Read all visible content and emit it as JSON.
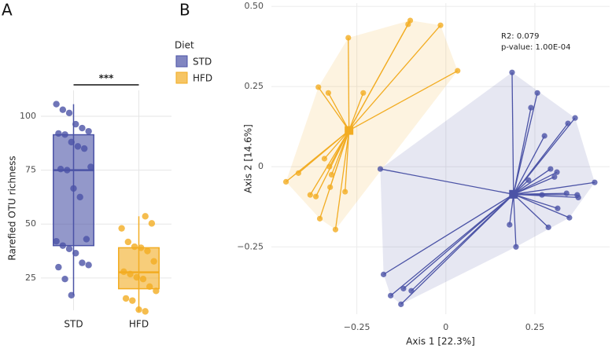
{
  "chart_data": [
    {
      "type": "box",
      "panel_label": "A",
      "y_label": "Rarefied OTU richness",
      "categories": [
        "STD",
        "HFD"
      ],
      "legend_title": "Diet",
      "significance": "***",
      "ylim": [
        10,
        112
      ],
      "yticks": [
        25,
        50,
        75,
        100
      ],
      "grid": true,
      "series": [
        {
          "name": "STD",
          "color": "#4b53a6",
          "box": {
            "q1": 40,
            "median": 75,
            "q3": 91.4,
            "whisker_low": 17,
            "whisker_high": 105.6
          },
          "values": [
            105.6,
            103,
            101.5,
            96.3,
            94.5,
            93,
            92,
            91.5,
            88,
            86,
            85,
            76.5,
            75.5,
            75,
            66.5,
            62.5,
            43,
            42,
            40,
            38.5,
            36.5,
            32,
            31,
            30,
            24.5,
            17
          ]
        },
        {
          "name": "HFD",
          "color": "#f2ac22",
          "box": {
            "q1": 20,
            "median": 27.6,
            "q3": 39,
            "whisker_low": 9.5,
            "whisker_high": 53.6
          },
          "values": [
            53.6,
            50.3,
            48,
            41.7,
            39.5,
            39,
            37.5,
            32.7,
            27.9,
            26.8,
            25.3,
            24.5,
            21,
            19,
            15.5,
            14.5,
            10.3,
            9.5
          ]
        }
      ]
    },
    {
      "type": "scatter",
      "panel_label": "B",
      "x_label": "Axis 1 [22.3%]",
      "y_label": "Axis 2 [14.6%]",
      "annotations": [
        "R2: 0.079",
        "p-value: 1.00E-04"
      ],
      "xlim": [
        -0.49,
        0.46
      ],
      "ylim": [
        -0.46,
        0.51
      ],
      "xticks": [
        {
          "value": -0.25,
          "label": "−0.25"
        },
        0,
        0.25
      ],
      "yticks": [
        {
          "value": -0.25,
          "label": "−0.25"
        },
        0,
        0.25,
        {
          "value": 0.5,
          "label": "0.50"
        }
      ],
      "grid": true,
      "series": [
        {
          "name": "HFD",
          "color": "#f2ac22",
          "centroid": [
            -0.272,
            0.113
          ],
          "x": [
            -0.1,
            -0.106,
            -0.015,
            0.033,
            -0.274,
            -0.358,
            -0.33,
            -0.232,
            -0.414,
            -0.449,
            -0.381,
            -0.365,
            -0.341,
            -0.327,
            -0.321,
            -0.325,
            -0.283,
            -0.354,
            -0.31
          ],
          "values": [
            0.456,
            0.444,
            0.441,
            0.299,
            0.402,
            0.248,
            0.23,
            0.23,
            -0.02,
            -0.047,
            -0.088,
            -0.093,
            0.025,
            0,
            -0.025,
            -0.064,
            -0.078,
            -0.162,
            -0.196
          ]
        },
        {
          "name": "STD",
          "color": "#4b53a6",
          "centroid": [
            0.19,
            -0.086
          ],
          "x": [
            0.186,
            0.257,
            0.239,
            0.363,
            0.343,
            0.277,
            -0.184,
            0.294,
            0.312,
            0.305,
            0.232,
            0.418,
            0.339,
            0.369,
            0.372,
            0.27,
            0.314,
            0.347,
            0.288,
            0.179,
            0.197,
            -0.175,
            -0.097,
            -0.119,
            -0.155,
            -0.126
          ],
          "values": [
            0.294,
            0.23,
            0.184,
            0.152,
            0.135,
            0.096,
            -0.007,
            -0.007,
            -0.017,
            -0.032,
            -0.042,
            -0.049,
            -0.083,
            -0.088,
            -0.096,
            -0.088,
            -0.13,
            -0.159,
            -0.189,
            -0.181,
            -0.25,
            -0.336,
            -0.387,
            -0.38,
            -0.402,
            -0.429
          ]
        }
      ]
    }
  ]
}
